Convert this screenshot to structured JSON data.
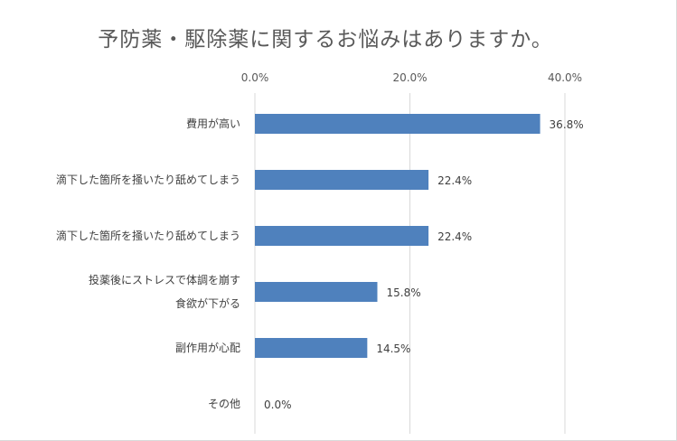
{
  "chart_data": {
    "type": "bar",
    "orientation": "horizontal",
    "title": "予防薬・駆除薬に関するお悩みはありますか。",
    "xlim": [
      0,
      40
    ],
    "ticks": [
      {
        "value": 0,
        "label": "0.0%"
      },
      {
        "value": 20,
        "label": "20.0%"
      },
      {
        "value": 40,
        "label": "40.0%"
      }
    ],
    "tick_position": "top",
    "grid": true,
    "categories": [
      {
        "lines": [
          "費用が高い"
        ]
      },
      {
        "lines": [
          "滴下した箇所を掻いたり舐めてしまう"
        ]
      },
      {
        "lines": [
          "滴下した箇所を掻いたり舐めてしまう"
        ]
      },
      {
        "lines": [
          "投薬後にストレスで体調を崩す",
          "食欲が下がる"
        ]
      },
      {
        "lines": [
          "副作用が心配"
        ]
      },
      {
        "lines": [
          "その他"
        ]
      }
    ],
    "values": [
      36.8,
      22.4,
      22.4,
      15.8,
      14.5,
      0.0
    ],
    "value_labels": [
      "36.8%",
      "22.4%",
      "22.4%",
      "15.8%",
      "14.5%",
      "0.0%"
    ],
    "bar_color": "#4f81bd",
    "grid_color": "#d9d9d9"
  }
}
